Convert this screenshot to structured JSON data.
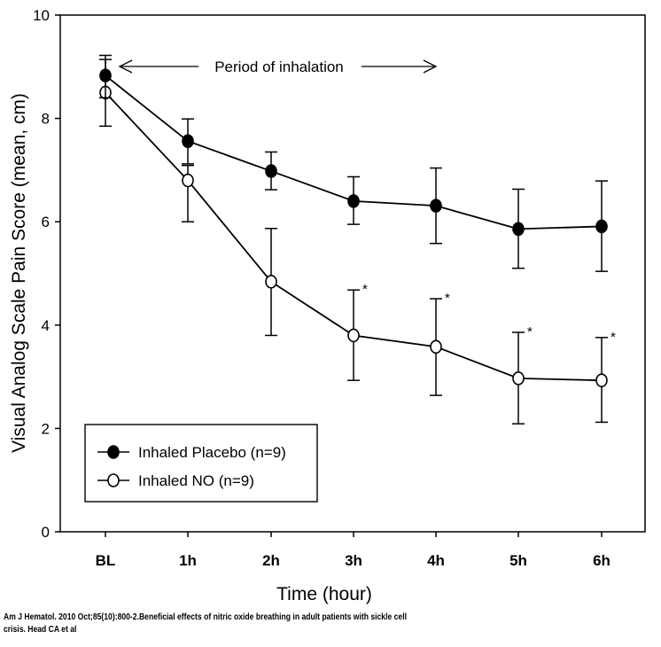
{
  "chart_data": {
    "type": "line",
    "categories": [
      "BL",
      "1h",
      "2h",
      "3h",
      "4h",
      "5h",
      "6h"
    ],
    "xlabel": "Time (hour)",
    "ylabel": "Visual Analog Scale Pain Score (mean, cm)",
    "ylim": [
      0,
      10
    ],
    "yticks": [
      "0",
      "2",
      "4",
      "6",
      "8",
      "10"
    ],
    "grid": false,
    "legend_position": "bottom-left",
    "series": [
      {
        "name": "Inhaled Placebo (n=9)",
        "marker": "filled-circle",
        "values": [
          8.83,
          7.56,
          6.98,
          6.4,
          6.31,
          5.86,
          5.91
        ],
        "error_low": [
          8.4,
          7.12,
          6.62,
          5.95,
          5.58,
          5.1,
          5.04
        ],
        "error_high": [
          9.22,
          7.99,
          7.35,
          6.87,
          7.04,
          6.63,
          6.79
        ]
      },
      {
        "name": "Inhaled NO (n=9)",
        "marker": "open-circle",
        "values": [
          8.5,
          6.8,
          4.84,
          3.8,
          3.58,
          2.97,
          2.93
        ],
        "error_low": [
          7.85,
          6.0,
          3.8,
          2.93,
          2.64,
          2.09,
          2.12
        ],
        "error_high": [
          9.14,
          7.09,
          5.87,
          4.68,
          4.51,
          3.86,
          3.76
        ]
      }
    ],
    "significance_markers": [
      {
        "category": "3h",
        "label": "*"
      },
      {
        "category": "4h",
        "label": "*"
      },
      {
        "category": "5h",
        "label": "*"
      },
      {
        "category": "6h",
        "label": "*"
      }
    ],
    "annotation": {
      "text": "Period of inhalation",
      "from": "BL",
      "to": "4h"
    }
  },
  "caption": {
    "line1": "Am J Hematol. 2010 Oct;85(10):800-2.Beneficial effects of nitric oxide breathing in adult patients with sickle cell",
    "line2": "crisis. Head CA et al"
  }
}
